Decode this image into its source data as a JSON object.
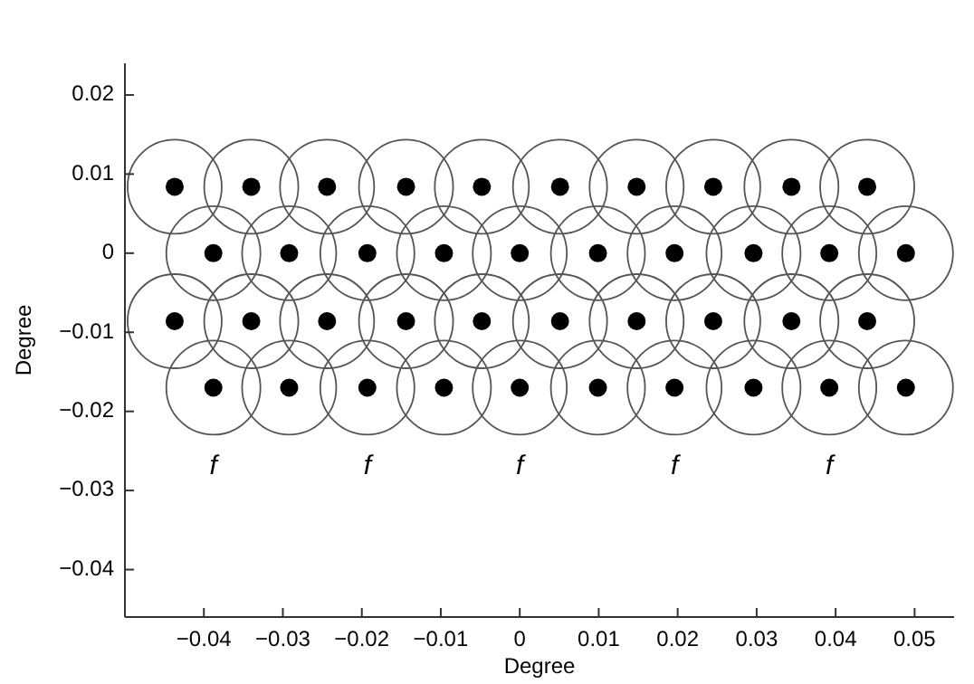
{
  "chart_data": {
    "type": "scatter",
    "xlabel": "Degree",
    "ylabel": "Degree",
    "xlim": [
      -0.05,
      0.055
    ],
    "ylim": [
      -0.046,
      0.024
    ],
    "xticks": [
      {
        "value": -0.04,
        "label": "−0.04"
      },
      {
        "value": -0.03,
        "label": "−0.03"
      },
      {
        "value": -0.02,
        "label": "−0.02"
      },
      {
        "value": -0.01,
        "label": "−0.01"
      },
      0,
      0.01,
      0.02,
      0.03,
      0.04,
      0.05
    ],
    "yticks": [
      {
        "value": -0.04,
        "label": "−0.04"
      },
      {
        "value": -0.03,
        "label": "−0.03"
      },
      {
        "value": -0.02,
        "label": "−0.02"
      },
      {
        "value": -0.01,
        "label": "−0.01"
      },
      0,
      0.01,
      0.02
    ],
    "grid": false,
    "marker": "circle",
    "series": [
      {
        "type": "bubble",
        "color": "#555555",
        "x": [
          -0.0437,
          -0.034,
          -0.0244,
          -0.0144,
          -0.0048,
          0.0051,
          0.0148,
          0.0245,
          0.0344,
          0.044,
          -0.0388,
          -0.0292,
          -0.0193,
          -0.0096,
          0,
          0.0099,
          0.0196,
          0.0296,
          0.0392,
          0.0489,
          -0.0437,
          -0.034,
          -0.0244,
          -0.0144,
          -0.0048,
          0.0051,
          0.0148,
          0.0245,
          0.0344,
          0.044,
          -0.0388,
          -0.0292,
          -0.0193,
          -0.0096,
          0,
          0.0099,
          0.0196,
          0.0296,
          0.0392,
          0.0489
        ],
        "values": [
          0.0084,
          0.0084,
          0.0084,
          0.0084,
          0.0084,
          0.0084,
          0.0084,
          0.0084,
          0.0084,
          0.0084,
          0,
          0,
          0,
          0,
          0,
          0,
          0,
          0,
          0,
          0,
          -0.0086,
          -0.0086,
          -0.0086,
          -0.0086,
          -0.0086,
          -0.0086,
          -0.0086,
          -0.0086,
          -0.0086,
          -0.0086,
          -0.017,
          -0.017,
          -0.017,
          -0.017,
          -0.017,
          -0.017,
          -0.017,
          -0.017,
          -0.017,
          -0.017
        ],
        "sizes": [
          1,
          1,
          1,
          1,
          1,
          1,
          1,
          1,
          1,
          1,
          1,
          1,
          1,
          1,
          1,
          1,
          1,
          1,
          1,
          1,
          1,
          1,
          1,
          1,
          1,
          1,
          1,
          1,
          1,
          1,
          1,
          1,
          1,
          1,
          1,
          1,
          1,
          1,
          1,
          1
        ]
      },
      {
        "color": "#000000",
        "x": [
          -0.0437,
          -0.034,
          -0.0244,
          -0.0144,
          -0.0048,
          0.0051,
          0.0148,
          0.0245,
          0.0344,
          0.044,
          -0.0388,
          -0.0292,
          -0.0193,
          -0.0096,
          0,
          0.0099,
          0.0196,
          0.0296,
          0.0392,
          0.0489,
          -0.0437,
          -0.034,
          -0.0244,
          -0.0144,
          -0.0048,
          0.0051,
          0.0148,
          0.0245,
          0.0344,
          0.044,
          -0.0388,
          -0.0292,
          -0.0193,
          -0.0096,
          0,
          0.0099,
          0.0196,
          0.0296,
          0.0392,
          0.0489
        ],
        "values": [
          0.0084,
          0.0084,
          0.0084,
          0.0084,
          0.0084,
          0.0084,
          0.0084,
          0.0084,
          0.0084,
          0.0084,
          0,
          0,
          0,
          0,
          0,
          0,
          0,
          0,
          0,
          0,
          -0.0086,
          -0.0086,
          -0.0086,
          -0.0086,
          -0.0086,
          -0.0086,
          -0.0086,
          -0.0086,
          -0.0086,
          -0.0086,
          -0.017,
          -0.017,
          -0.017,
          -0.017,
          -0.017,
          -0.017,
          -0.017,
          -0.017,
          -0.017,
          -0.017
        ]
      }
    ],
    "annotations": [
      "f",
      "f",
      "f",
      "f",
      "f"
    ]
  }
}
